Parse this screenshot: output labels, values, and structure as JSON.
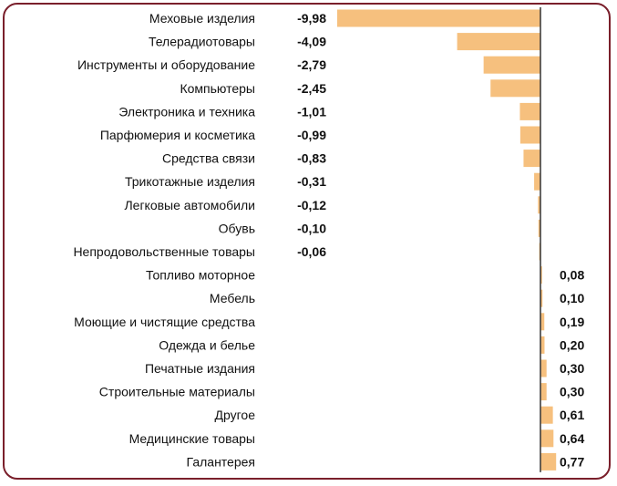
{
  "chart_data": {
    "type": "bar",
    "orientation": "horizontal",
    "title": "",
    "xlabel": "",
    "ylabel": "",
    "categories": [
      "Меховые изделия",
      "Телерадиотовары",
      "Инструменты и оборудование",
      "Компьютеры",
      "Электроника и техника",
      "Парфюмерия и косметика",
      "Средства связи",
      "Трикотажные изделия",
      "Легковые автомобили",
      "Обувь",
      "Непродовольственные товары",
      "Топливо моторное",
      "Мебель",
      "Моющие и чистящие средства",
      "Одежда и белье",
      "Печатные издания",
      "Строительные материалы",
      "Другое",
      "Медицинские товары",
      "Галантерея"
    ],
    "values": [
      -9.98,
      -4.09,
      -2.79,
      -2.45,
      -1.01,
      -0.99,
      -0.83,
      -0.31,
      -0.12,
      -0.1,
      -0.06,
      0.08,
      0.1,
      0.19,
      0.2,
      0.3,
      0.3,
      0.61,
      0.64,
      0.77
    ],
    "value_labels": [
      "-9,98",
      "-4,09",
      "-2,79",
      "-2,45",
      "-1,01",
      "-0,99",
      "-0,83",
      "-0,31",
      "-0,12",
      "-0,10",
      "-0,06",
      "0,08",
      "0,10",
      "0,19",
      "0,20",
      "0,30",
      "0,30",
      "0,61",
      "0,64",
      "0,77"
    ],
    "xlim": [
      -9.98,
      0.77
    ],
    "grid": false,
    "legend": "none",
    "colors": {
      "bar": "#f6c07e",
      "axis": "#333333",
      "frame": "#7a1f2b"
    }
  }
}
